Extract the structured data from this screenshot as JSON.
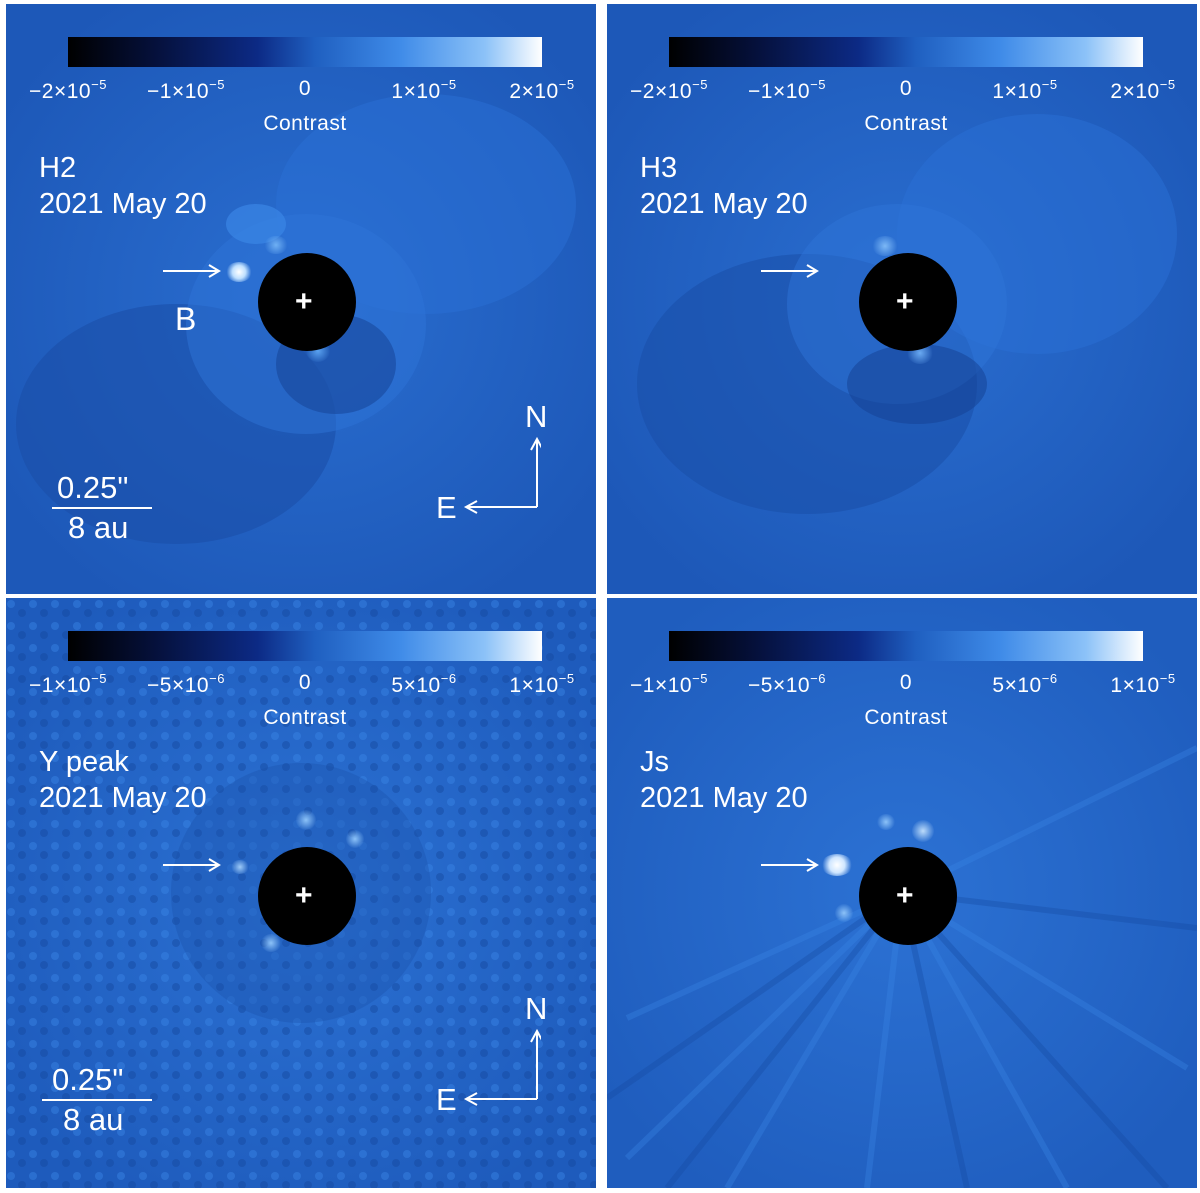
{
  "panels": [
    {
      "id": "h2",
      "filter": "H2",
      "date": "2021 May 20",
      "colorbar": {
        "ticks": [
          {
            "mant": "−2×10",
            "exp": "−5"
          },
          {
            "mant": "−1×10",
            "exp": "−5"
          },
          {
            "mant": "0",
            "exp": ""
          },
          {
            "mant": "1×10",
            "exp": "−5"
          },
          {
            "mant": "2×10",
            "exp": "−5"
          }
        ],
        "label": "Contrast"
      },
      "companion_label": "B",
      "scale": {
        "angular": "0.25\"",
        "physical": "8 au"
      },
      "compass": {
        "north": "N",
        "east": "E"
      }
    },
    {
      "id": "h3",
      "filter": "H3",
      "date": "2021 May 20",
      "colorbar": {
        "ticks": [
          {
            "mant": "−2×10",
            "exp": "−5"
          },
          {
            "mant": "−1×10",
            "exp": "−5"
          },
          {
            "mant": "0",
            "exp": ""
          },
          {
            "mant": "1×10",
            "exp": "−5"
          },
          {
            "mant": "2×10",
            "exp": "−5"
          }
        ],
        "label": "Contrast"
      }
    },
    {
      "id": "ypeak",
      "filter": "Y peak",
      "date": "2021 May 20",
      "colorbar": {
        "ticks": [
          {
            "mant": "−1×10",
            "exp": "−5"
          },
          {
            "mant": "−5×10",
            "exp": "−6"
          },
          {
            "mant": "0",
            "exp": ""
          },
          {
            "mant": "5×10",
            "exp": "−6"
          },
          {
            "mant": "1×10",
            "exp": "−5"
          }
        ],
        "label": "Contrast"
      },
      "scale": {
        "angular": "0.25\"",
        "physical": "8 au"
      },
      "compass": {
        "north": "N",
        "east": "E"
      }
    },
    {
      "id": "js",
      "filter": "Js",
      "date": "2021 May 20",
      "colorbar": {
        "ticks": [
          {
            "mant": "−1×10",
            "exp": "−5"
          },
          {
            "mant": "−5×10",
            "exp": "−6"
          },
          {
            "mant": "0",
            "exp": ""
          },
          {
            "mant": "5×10",
            "exp": "−6"
          },
          {
            "mant": "1×10",
            "exp": "−5"
          }
        ],
        "label": "Contrast"
      }
    }
  ],
  "colors": {
    "background": "#1f5fc0",
    "mask": "#000000",
    "annotation": "#ffffff"
  },
  "icons": {
    "star_marker": "+",
    "companion_arrow": "arrow-right-icon",
    "compass": "compass-arrows-icon"
  }
}
